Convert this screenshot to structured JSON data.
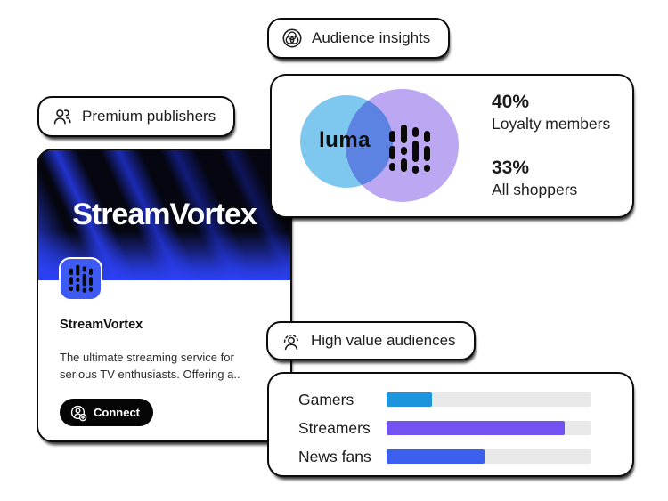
{
  "badges": {
    "audience_insights": {
      "label": "Audience insights",
      "icon": "venn-diagram-icon"
    },
    "premium_publishers": {
      "label": "Premium publishers",
      "icon": "people-icon"
    },
    "high_value_audiences": {
      "label": "High value audiences",
      "icon": "person-highlight-icon"
    }
  },
  "insights_card": {
    "venn": {
      "left_label": "luma",
      "left_circle_color": "#7EC7EF",
      "right_circle_color": "#BCA8F2",
      "right_logo": "equalizer-bars-logo"
    },
    "stats": [
      {
        "value": "40%",
        "label": "Loyalty members"
      },
      {
        "value": "33%",
        "label": "All shoppers"
      }
    ]
  },
  "publisher_card": {
    "hero_title": "StreamVortex",
    "app_name": "StreamVortex",
    "description_lines": [
      "The ultimate streaming service for",
      "serious TV enthusiasts. Offering a.."
    ],
    "connect_label": "Connect",
    "connect_icon": "add-user-icon",
    "hero_accent_color": "#2B40F2",
    "app_icon_color": "#3D5AF3"
  },
  "audiences_card": {
    "track_color": "#E9E9E9",
    "rows": [
      {
        "label": "Gamers",
        "value": 22,
        "color": "#1C95DC"
      },
      {
        "label": "Streamers",
        "value": 87,
        "color": "#7452F0"
      },
      {
        "label": "News fans",
        "value": 48,
        "color": "#3D5FEE"
      }
    ]
  },
  "chart_data": {
    "type": "bar",
    "orientation": "horizontal",
    "title": "High value audiences",
    "categories": [
      "Gamers",
      "Streamers",
      "News fans"
    ],
    "values": [
      22,
      87,
      48
    ],
    "xlim": [
      0,
      100
    ],
    "series_colors": [
      "#1C95DC",
      "#7452F0",
      "#3D5FEE"
    ],
    "grid": false,
    "legend": false
  }
}
